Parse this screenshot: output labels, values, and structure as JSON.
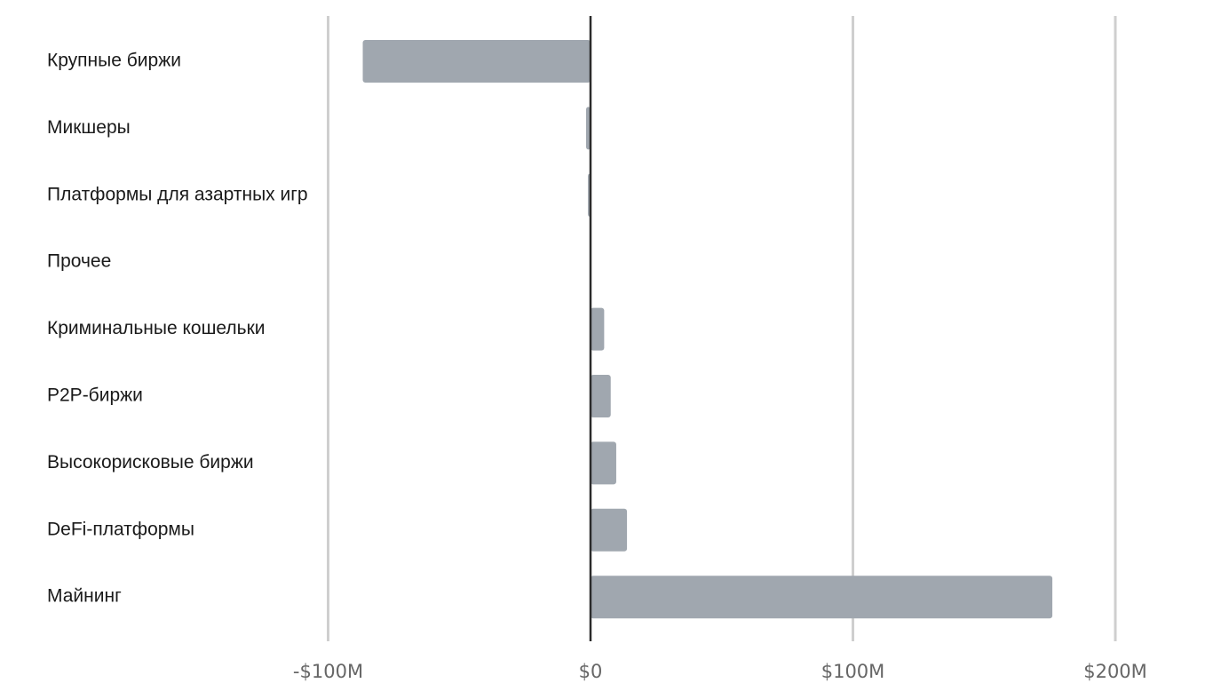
{
  "chart_data": {
    "type": "bar",
    "orientation": "horizontal",
    "categories": [
      "Крупные биржи",
      "Микшеры",
      "Платформы для азартных игр",
      "Прочее",
      "Криминальные кошельки",
      "P2P-биржи",
      "Высокорисковые биржи",
      "DeFi-платформы",
      "Майнинг"
    ],
    "values": [
      -86.8,
      -1.7,
      -1.0,
      -0.3,
      5.2,
      7.7,
      9.8,
      13.9,
      176.0
    ],
    "xlim": [
      -100,
      200
    ],
    "x_ticks": [
      {
        "value": -100,
        "label": "-$100M"
      },
      {
        "value": 0,
        "label": "$0"
      },
      {
        "value": 100,
        "label": "$100M"
      },
      {
        "value": 200,
        "label": "$200M"
      }
    ],
    "grid": true,
    "title": "",
    "xlabel": "",
    "ylabel": "",
    "colors": {
      "bar": "#a0a7af",
      "grid": "#cfcfcf",
      "zero_line": "#2b2b2b",
      "category_text": "#1a1a1a",
      "tick_text": "#666666"
    }
  }
}
